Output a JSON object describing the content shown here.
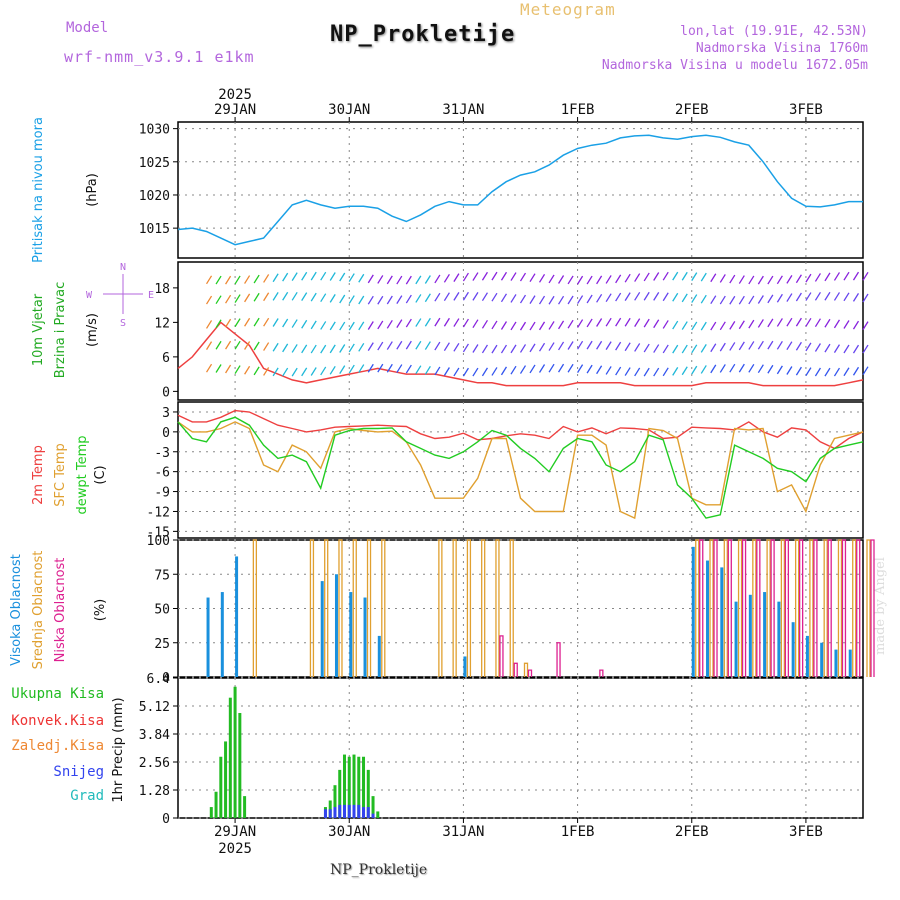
{
  "header": {
    "model_label": "Model",
    "model_version": "wrf-nmm_v3.9.1 e1km",
    "meteogram_label": "Meteogram",
    "station_title": "NP_Prokletije",
    "location_coords": "lon,lat (19.91E, 42.53N)",
    "altitude": "Nadmorska Visina 1760m",
    "model_altitude": "Nadmorska Visina u modelu 1672.05m"
  },
  "footer": {
    "station_label": "NP_Prokletije",
    "credit": "made by Angel"
  },
  "colors": {
    "pressure": "#1aa0e6",
    "temp2m": "#ee4040",
    "sfc_temp": "#e0a030",
    "dewpt": "#22cc22",
    "cloud_high": "#1a90dd",
    "cloud_mid": "#e0a030",
    "cloud_low": "#dd2090",
    "precip_total": "#22bb22",
    "precip_snow": "#3344ee",
    "wind_purple": "#8822dd"
  },
  "chart_data": [
    {
      "type": "line",
      "panel": "pressure",
      "ylabel_lines": [
        "Pritisak na nivou mora",
        "(hPa)"
      ],
      "yticks": [
        "1030",
        "1025",
        "1020",
        "1015"
      ],
      "ylim": [
        1010.5,
        1031
      ],
      "top_axis_labels": [
        "29JAN",
        "30JAN",
        "31JAN",
        "1FEB",
        "2FEB",
        "3FEB"
      ],
      "top_year": "2025",
      "x_hours": [
        0,
        3,
        6,
        9,
        12,
        15,
        18,
        21,
        24,
        27,
        30,
        33,
        36,
        39,
        42,
        45,
        48,
        51,
        54,
        57,
        60,
        63,
        66,
        69,
        72,
        75,
        78,
        81,
        84,
        87,
        90,
        93,
        96,
        99,
        102,
        105,
        108,
        111,
        114,
        117,
        120,
        123,
        126,
        129,
        132,
        135,
        138,
        141,
        144
      ],
      "series": [
        {
          "values": [
            1014.8,
            1015,
            1014.5,
            1013.5,
            1012.5,
            1013,
            1013.5,
            1016,
            1018.5,
            1019.2,
            1018.5,
            1018,
            1018.3,
            1018.3,
            1018.0,
            1016.8,
            1016.0,
            1017.0,
            1018.3,
            1019.0,
            1018.5,
            1018.5,
            1020.5,
            1022,
            1023,
            1023.5,
            1024.5,
            1026,
            1027,
            1027.5,
            1027.8,
            1028.6,
            1028.9,
            1029.0,
            1028.6,
            1028.4,
            1028.8,
            1029.0,
            1028.7,
            1028.0,
            1027.5,
            1025.0,
            1022,
            1019.5,
            1018.3,
            1018.2,
            1018.5,
            1019.0,
            1019.0
          ]
        }
      ]
    },
    {
      "type": "scatter",
      "panel": "wind",
      "ylabel_lines": [
        "10m Vjetar",
        "Brzina i Pravac",
        "(m/s)"
      ],
      "yticks": [
        "18",
        "12",
        "6",
        "0"
      ],
      "ylim": [
        -1.5,
        22.5
      ],
      "compass": [
        "N",
        "E",
        "S",
        "W"
      ],
      "x_hours": [
        0,
        3,
        6,
        9,
        12,
        15,
        18,
        21,
        24,
        27,
        30,
        33,
        36,
        39,
        42,
        45,
        48,
        51,
        54,
        57,
        60,
        63,
        66,
        69,
        72,
        75,
        78,
        81,
        84,
        87,
        90,
        93,
        96,
        99,
        102,
        105,
        108,
        111,
        114,
        117,
        120,
        123,
        126,
        129,
        132,
        135,
        138,
        141,
        144
      ],
      "series": [
        {
          "name": "speed",
          "values": [
            4,
            6,
            9,
            12,
            10,
            8,
            4,
            3,
            2,
            1.5,
            2,
            2.5,
            3,
            3.5,
            4,
            3.5,
            3,
            3,
            3,
            2.5,
            2,
            1.5,
            1.5,
            1,
            1,
            1,
            1,
            1,
            1.5,
            1.5,
            1.5,
            1.5,
            1,
            1,
            1,
            1,
            1,
            1.5,
            1.5,
            1.5,
            1.5,
            1,
            1,
            1,
            1,
            1,
            1,
            1.5,
            2
          ]
        }
      ]
    },
    {
      "type": "line",
      "panel": "temperature",
      "ylabel_lines": [
        "2m Temp",
        "SFC Temp",
        "dewpt Temp",
        "(C)"
      ],
      "yticks": [
        "3",
        "0",
        "-3",
        "-6",
        "-9",
        "-12",
        "-15"
      ],
      "ylim": [
        -16,
        4.5
      ],
      "x_hours": [
        0,
        3,
        6,
        9,
        12,
        15,
        18,
        21,
        24,
        27,
        30,
        33,
        36,
        39,
        42,
        45,
        48,
        51,
        54,
        57,
        60,
        63,
        66,
        69,
        72,
        75,
        78,
        81,
        84,
        87,
        90,
        93,
        96,
        99,
        102,
        105,
        108,
        111,
        114,
        117,
        120,
        123,
        126,
        129,
        132,
        135,
        138,
        141,
        144
      ],
      "series": [
        {
          "name": "2m Temp",
          "values": [
            2.5,
            1.5,
            1.5,
            2.2,
            3.2,
            3,
            2,
            1,
            0.5,
            0,
            0.3,
            0.7,
            0.8,
            0.9,
            1.0,
            0.9,
            0.8,
            -0.3,
            -1.0,
            -0.8,
            -0.2,
            -1.2,
            -1.0,
            -0.6,
            -0.3,
            -0.5,
            -1.0,
            0.8,
            0,
            0.6,
            -0.3,
            0.6,
            0.5,
            0.3,
            -1.0,
            -0.8,
            0.7,
            0.6,
            0.5,
            0.3,
            1.5,
            0,
            -0.8,
            0.6,
            0.3,
            -1.5,
            -2.5,
            -1.0,
            0.0
          ]
        },
        {
          "name": "SFC Temp",
          "values": [
            1.5,
            0,
            0,
            0.5,
            1.5,
            0.5,
            -5,
            -6,
            -2,
            -3,
            -5.5,
            0,
            0.5,
            0.2,
            0,
            0.1,
            -1.5,
            -5,
            -10,
            -10,
            -10,
            -7,
            -1,
            -1,
            -10,
            -12,
            -12,
            -12,
            -0.5,
            -0.5,
            -2,
            -12,
            -13,
            0.5,
            0.2,
            -1,
            -10,
            -11,
            -11,
            0.5,
            0.3,
            0.5,
            -9,
            -8,
            -12,
            -5,
            -1,
            -0.5,
            0.0
          ]
        },
        {
          "name": "dewpt Temp",
          "values": [
            1.5,
            -1.0,
            -1.5,
            1.5,
            2.2,
            1.0,
            -2.0,
            -4.0,
            -3.5,
            -4.5,
            -8.5,
            -0.5,
            0.2,
            0.5,
            0.5,
            0.6,
            -1.5,
            -2.5,
            -3.5,
            -4.0,
            -3.0,
            -1.5,
            0.2,
            -0.5,
            -2.5,
            -4.0,
            -6.0,
            -2.5,
            -1.0,
            -1.5,
            -5.0,
            -6.0,
            -4.5,
            -0.5,
            -1.2,
            -8.0,
            -10.0,
            -13.0,
            -12.5,
            -2.0,
            -3.0,
            -4.0,
            -5.5,
            -6.0,
            -7.5,
            -4.0,
            -2.5,
            -2.0,
            -1.5
          ]
        }
      ]
    },
    {
      "type": "bar",
      "panel": "clouds",
      "ylabel_lines": [
        "Visoka Oblacnost",
        "Srednja Oblacnost",
        "Niska Oblacnost",
        "(%)"
      ],
      "yticks": [
        "100",
        "75",
        "50",
        "25",
        "0"
      ],
      "ylim": [
        0,
        100
      ],
      "x_hours": [
        0,
        3,
        6,
        9,
        12,
        15,
        18,
        21,
        24,
        27,
        30,
        33,
        36,
        39,
        42,
        45,
        48,
        51,
        54,
        57,
        60,
        63,
        66,
        69,
        72,
        75,
        78,
        81,
        84,
        87,
        90,
        93,
        96,
        99,
        102,
        105,
        108,
        111,
        114,
        117,
        120,
        123,
        126,
        129,
        132,
        135,
        138,
        141,
        144
      ],
      "series": [
        {
          "name": "Visoka Oblacnost",
          "values": [
            0,
            0,
            58,
            62,
            88,
            0,
            0,
            0,
            0,
            0,
            70,
            75,
            62,
            58,
            30,
            0,
            0,
            0,
            0,
            0,
            15,
            0,
            0,
            0,
            0,
            0,
            0,
            0,
            0,
            0,
            0,
            0,
            0,
            0,
            0,
            0,
            95,
            85,
            80,
            55,
            60,
            62,
            55,
            40,
            30,
            25,
            20,
            20,
            0
          ]
        },
        {
          "name": "Srednja Oblacnost",
          "values": [
            0,
            0,
            0,
            0,
            0,
            100,
            0,
            0,
            0,
            100,
            100,
            100,
            100,
            100,
            100,
            0,
            0,
            0,
            100,
            100,
            100,
            100,
            100,
            100,
            10,
            0,
            0,
            0,
            0,
            0,
            0,
            0,
            0,
            0,
            0,
            0,
            100,
            100,
            100,
            100,
            100,
            100,
            100,
            100,
            100,
            100,
            100,
            100,
            100
          ]
        },
        {
          "name": "Niska Oblacnost",
          "values": [
            0,
            0,
            0,
            0,
            0,
            0,
            0,
            0,
            0,
            0,
            0,
            0,
            0,
            0,
            0,
            0,
            0,
            0,
            0,
            0,
            0,
            0,
            30,
            10,
            5,
            0,
            25,
            0,
            0,
            5,
            0,
            0,
            0,
            0,
            0,
            0,
            100,
            100,
            100,
            100,
            100,
            100,
            100,
            100,
            100,
            100,
            100,
            100,
            100
          ]
        }
      ]
    },
    {
      "type": "bar",
      "panel": "precip",
      "ylabel_lines": [
        "1hr Precip (mm)"
      ],
      "legend": [
        "Ukupna Kisa",
        "Konvek.Kisa",
        "Zaledj.Kisa",
        "Snijeg",
        "Grad"
      ],
      "yticks": [
        "6.4",
        "5.12",
        "3.84",
        "2.56",
        "1.28",
        "0"
      ],
      "ylim": [
        0,
        6.4
      ],
      "bottom_axis_labels": [
        "29JAN",
        "30JAN",
        "31JAN",
        "1FEB",
        "2FEB",
        "3FEB"
      ],
      "bottom_year": "2025",
      "x_hours": [
        7,
        8,
        9,
        10,
        11,
        12,
        13,
        14,
        31,
        32,
        33,
        34,
        35,
        36,
        37,
        38,
        39,
        40,
        41,
        42
      ],
      "series": [
        {
          "name": "Ukupna Kisa",
          "values": [
            0.5,
            1.2,
            2.8,
            3.5,
            5.5,
            6.0,
            4.8,
            1.0,
            0.5,
            0.8,
            1.5,
            2.2,
            2.9,
            2.8,
            2.9,
            2.8,
            2.8,
            2.2,
            1.0,
            0.3
          ]
        },
        {
          "name": "Snijeg",
          "values": [
            0,
            0,
            0,
            0,
            0,
            0,
            0,
            0,
            0.4,
            0.4,
            0.5,
            0.6,
            0.6,
            0.6,
            0.6,
            0.6,
            0.5,
            0.5,
            0.2,
            0
          ]
        }
      ]
    }
  ]
}
